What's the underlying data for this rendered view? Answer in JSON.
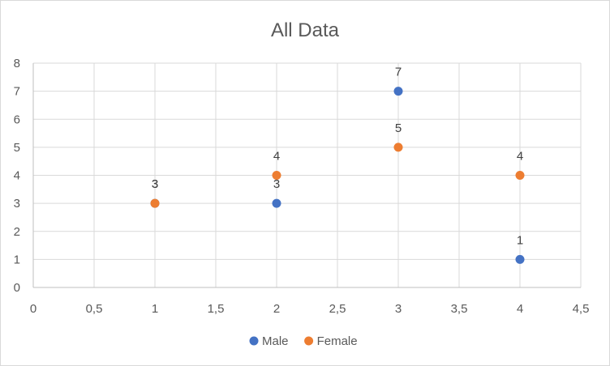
{
  "chart_data": {
    "type": "scatter",
    "title": "All Data",
    "xlabel": "",
    "ylabel": "",
    "xlim": [
      0,
      4.5
    ],
    "ylim": [
      0,
      8
    ],
    "x_tick_labels": [
      "0",
      "0,5",
      "1",
      "1,5",
      "2",
      "2,5",
      "3",
      "3,5",
      "4",
      "4,5"
    ],
    "y_tick_labels": [
      "0",
      "1",
      "2",
      "3",
      "4",
      "5",
      "6",
      "7",
      "8"
    ],
    "grid": true,
    "legend_position": "bottom",
    "series": [
      {
        "name": "Male",
        "color": "#4472c4",
        "points": [
          {
            "x": 1,
            "y": 3,
            "label": "3"
          },
          {
            "x": 2,
            "y": 3,
            "label": "3"
          },
          {
            "x": 3,
            "y": 7,
            "label": "7"
          },
          {
            "x": 4,
            "y": 1,
            "label": "1"
          }
        ]
      },
      {
        "name": "Female",
        "color": "#ed7d31",
        "points": [
          {
            "x": 1,
            "y": 3,
            "label": "3"
          },
          {
            "x": 2,
            "y": 4,
            "label": "4"
          },
          {
            "x": 3,
            "y": 5,
            "label": "5"
          },
          {
            "x": 4,
            "y": 4,
            "label": "4"
          }
        ]
      }
    ]
  }
}
